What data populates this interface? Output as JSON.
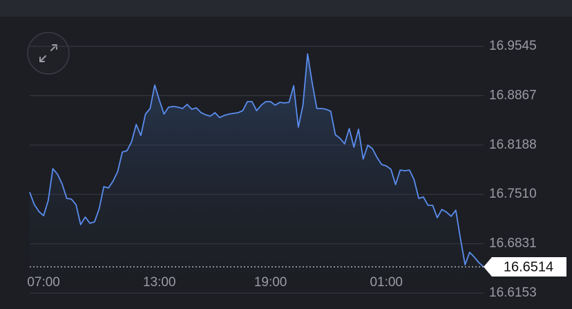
{
  "chart_data": {
    "type": "line",
    "categories": [
      null,
      null,
      null,
      "07:00",
      null,
      null,
      null,
      null,
      null,
      null,
      null,
      null,
      null,
      null,
      null,
      null,
      null,
      null,
      null,
      null,
      null,
      null,
      null,
      null,
      null,
      null,
      null,
      null,
      "13:00",
      null,
      null,
      null,
      null,
      null,
      null,
      null,
      null,
      null,
      null,
      null,
      null,
      null,
      null,
      null,
      null,
      null,
      null,
      null,
      null,
      null,
      null,
      null,
      "19:00",
      null,
      null,
      null,
      null,
      null,
      null,
      null,
      null,
      null,
      null,
      null,
      null,
      null,
      null,
      null,
      null,
      null,
      null,
      null,
      null,
      null,
      null,
      null,
      null,
      "01:00",
      null,
      null,
      null,
      null,
      null,
      null,
      null,
      null,
      null,
      null,
      null,
      null,
      null,
      null,
      null,
      null,
      null,
      null,
      null,
      null,
      null
    ],
    "values": [
      16.754,
      16.7369,
      16.7274,
      16.7217,
      16.7426,
      16.7863,
      16.7787,
      16.7654,
      16.7455,
      16.7445,
      16.7369,
      16.7094,
      16.7198,
      16.7113,
      16.7132,
      16.7312,
      16.7616,
      16.7597,
      16.7692,
      16.7825,
      16.8091,
      16.811,
      16.8234,
      16.8471,
      16.8319,
      16.8614,
      16.869,
      16.9013,
      16.8804,
      16.8614,
      16.8709,
      16.8718,
      16.8709,
      16.869,
      16.8747,
      16.868,
      16.8699,
      16.8633,
      16.8604,
      16.8585,
      16.8633,
      16.8566,
      16.8595,
      16.8614,
      16.8623,
      16.8633,
      16.8661,
      16.8785,
      16.8785,
      16.8661,
      16.8737,
      16.8785,
      16.8785,
      16.8737,
      16.8775,
      16.8766,
      16.8775,
      16.9003,
      16.8433,
      16.8737,
      16.944,
      16.9041,
      16.869,
      16.869,
      16.868,
      16.8652,
      16.8329,
      16.8281,
      16.8205,
      16.8414,
      16.8158,
      16.8405,
      16.7996,
      16.8186,
      16.8139,
      16.8015,
      16.792,
      16.7901,
      16.7854,
      16.7645,
      16.7844,
      16.7835,
      16.7844,
      16.7711,
      16.7455,
      16.7474,
      16.736,
      16.736,
      16.7189,
      16.7303,
      16.7265,
      16.7208,
      16.7293,
      16.6904,
      16.6543,
      16.6714,
      16.6647,
      16.6571,
      16.6514
    ],
    "color": "#5b8def",
    "ylim": [
      16.6153,
      16.9545
    ],
    "yticks": [
      16.6153,
      16.6831,
      {
        "value": 16.751,
        "label": "16.7510"
      },
      16.8188,
      16.8867,
      16.9545
    ],
    "grid": true,
    "last_value": 16.6514
  }
}
